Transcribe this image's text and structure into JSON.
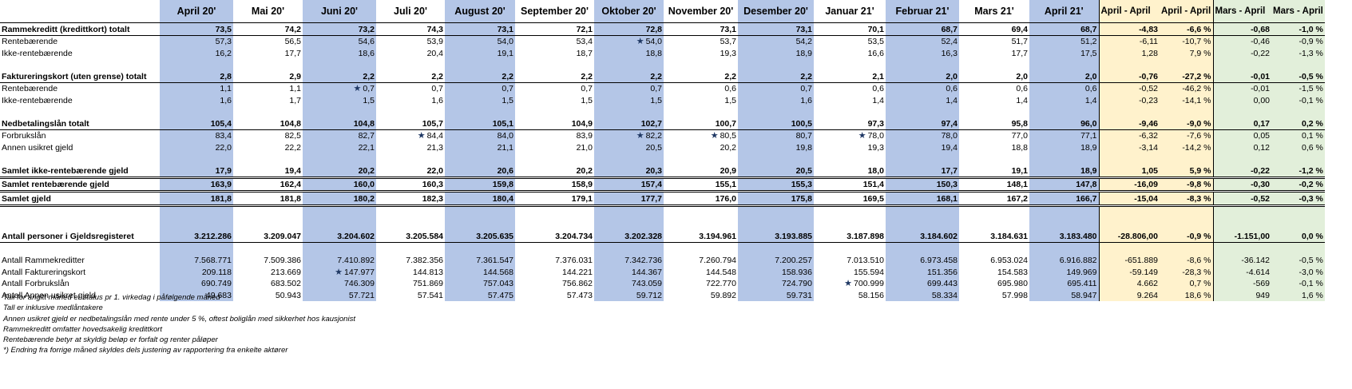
{
  "columns": [
    "April 20'",
    "Mai 20'",
    "Juni 20'",
    "Juli 20'",
    "August 20'",
    "September 20'",
    "Oktober 20'",
    "November 20'",
    "Desember 20'",
    "Januar 21'",
    "Februar 21'",
    "Mars 21'",
    "April 21'",
    "April - April",
    "April - April",
    "Mars - April",
    "Mars - April"
  ],
  "colors": {
    "blue": "#b4c6e7",
    "yellow": "#fff2cc",
    "green": "#e2efda",
    "star": "#1f3864"
  },
  "rows": [
    {
      "label": "Rammekreditt (kredittkort) totalt",
      "style": "bold",
      "values": [
        "73,5",
        "74,2",
        "73,2",
        "74,3",
        "73,1",
        "72,1",
        "72,8",
        "73,1",
        "73,1",
        "70,1",
        "68,7",
        "69,4",
        "68,7",
        "-4,83",
        "-6,6 %",
        "-0,68",
        "-1,0 %"
      ]
    },
    {
      "label": "Rentebærende",
      "values": [
        "57,3",
        "56,5",
        "54,6",
        "53,9",
        "54,0",
        "53,4",
        "54,0",
        "53,7",
        "54,2",
        "53,5",
        "52,4",
        "51,7",
        "51,2",
        "-6,11",
        "-10,7 %",
        "-0,46",
        "-0,9 %"
      ],
      "stars": [
        6
      ]
    },
    {
      "label": "Ikke-rentebærende",
      "values": [
        "16,2",
        "17,7",
        "18,6",
        "20,4",
        "19,1",
        "18,7",
        "18,8",
        "19,3",
        "18,9",
        "16,6",
        "16,3",
        "17,7",
        "17,5",
        "1,28",
        "7,9 %",
        "-0,22",
        "-1,3 %"
      ]
    },
    {
      "spacer": true
    },
    {
      "label": "Faktureringskort (uten grense) totalt",
      "style": "bold",
      "values": [
        "2,8",
        "2,9",
        "2,2",
        "2,2",
        "2,2",
        "2,2",
        "2,2",
        "2,2",
        "2,2",
        "2,1",
        "2,0",
        "2,0",
        "2,0",
        "-0,76",
        "-27,2 %",
        "-0,01",
        "-0,5 %"
      ]
    },
    {
      "label": "Rentebærende",
      "values": [
        "1,1",
        "1,1",
        "0,7",
        "0,7",
        "0,7",
        "0,7",
        "0,7",
        "0,6",
        "0,7",
        "0,6",
        "0,6",
        "0,6",
        "0,6",
        "-0,52",
        "-46,2 %",
        "-0,01",
        "-1,5 %"
      ],
      "stars": [
        2
      ]
    },
    {
      "label": "Ikke-rentebærende",
      "values": [
        "1,6",
        "1,7",
        "1,5",
        "1,6",
        "1,5",
        "1,5",
        "1,5",
        "1,5",
        "1,6",
        "1,4",
        "1,4",
        "1,4",
        "1,4",
        "-0,23",
        "-14,1 %",
        "0,00",
        "-0,1 %"
      ]
    },
    {
      "spacer": true
    },
    {
      "label": "Nedbetalingslån totalt",
      "style": "bold",
      "values": [
        "105,4",
        "104,8",
        "104,8",
        "105,7",
        "105,1",
        "104,9",
        "102,7",
        "100,7",
        "100,5",
        "97,3",
        "97,4",
        "95,8",
        "96,0",
        "-9,46",
        "-9,0 %",
        "0,17",
        "0,2 %"
      ]
    },
    {
      "label": "Forbrukslån",
      "values": [
        "83,4",
        "82,5",
        "82,7",
        "84,4",
        "84,0",
        "83,9",
        "82,2",
        "80,5",
        "80,7",
        "78,0",
        "78,0",
        "77,0",
        "77,1",
        "-6,32",
        "-7,6 %",
        "0,05",
        "0,1 %"
      ],
      "stars": [
        3,
        6,
        7,
        9
      ]
    },
    {
      "label": "Annen usikret gjeld",
      "values": [
        "22,0",
        "22,2",
        "22,1",
        "21,3",
        "21,1",
        "21,0",
        "20,5",
        "20,2",
        "19,8",
        "19,3",
        "19,4",
        "18,8",
        "18,9",
        "-3,14",
        "-14,2 %",
        "0,12",
        "0,6 %"
      ]
    },
    {
      "spacer": true
    },
    {
      "label": "Samlet ikke-rentebærende gjeld",
      "style": "bold",
      "values": [
        "17,9",
        "19,4",
        "20,2",
        "22,0",
        "20,6",
        "20,2",
        "20,3",
        "20,9",
        "20,5",
        "18,0",
        "17,7",
        "19,1",
        "18,9",
        "1,05",
        "5,9 %",
        "-0,22",
        "-1,2 %"
      ]
    },
    {
      "label": "Samlet rentebærende gjeld",
      "style": "bold",
      "values": [
        "163,9",
        "162,4",
        "160,0",
        "160,3",
        "159,8",
        "158,9",
        "157,4",
        "155,1",
        "155,3",
        "151,4",
        "150,3",
        "148,1",
        "147,8",
        "-16,09",
        "-9,8 %",
        "-0,30",
        "-0,2 %"
      ]
    },
    {
      "label": "Samlet gjeld",
      "style": "bold",
      "values": [
        "181,8",
        "181,8",
        "180,2",
        "182,3",
        "180,4",
        "179,1",
        "177,7",
        "176,0",
        "175,8",
        "169,5",
        "168,1",
        "167,2",
        "166,7",
        "-15,04",
        "-8,3 %",
        "-0,52",
        "-0,3 %"
      ]
    },
    {
      "bigspacer": true
    },
    {
      "label": "Antall personer i Gjeldsregisteret",
      "style": "bold",
      "values": [
        "3.212.286",
        "3.209.047",
        "3.204.602",
        "3.205.584",
        "3.205.635",
        "3.204.734",
        "3.202.328",
        "3.194.961",
        "3.193.885",
        "3.187.898",
        "3.184.602",
        "3.184.631",
        "3.183.480",
        "-28.806,00",
        "-0,9 %",
        "-1.151,00",
        "0,0 %"
      ]
    },
    {
      "spacer": true
    },
    {
      "label": "Antall Rammekreditter",
      "values": [
        "7.568.771",
        "7.509.386",
        "7.410.892",
        "7.382.356",
        "7.361.547",
        "7.376.031",
        "7.342.736",
        "7.260.794",
        "7.200.257",
        "7.013.510",
        "6.973.458",
        "6.953.024",
        "6.916.882",
        "-651.889",
        "-8,6 %",
        "-36.142",
        "-0,5 %"
      ]
    },
    {
      "label": "Antall Faktureringskort",
      "values": [
        "209.118",
        "213.669",
        "147.977",
        "144.813",
        "144.568",
        "144.221",
        "144.367",
        "144.548",
        "158.936",
        "155.594",
        "151.356",
        "154.583",
        "149.969",
        "-59.149",
        "-28,3 %",
        "-4.614",
        "-3,0 %"
      ],
      "stars": [
        2
      ]
    },
    {
      "label": "Antall Forbrukslån",
      "values": [
        "690.749",
        "683.502",
        "746.309",
        "751.869",
        "757.043",
        "756.862",
        "743.059",
        "722.770",
        "724.790",
        "700.999",
        "699.443",
        "695.980",
        "695.411",
        "4.662",
        "0,7 %",
        "-569",
        "-0,1 %"
      ],
      "stars": [
        9
      ]
    },
    {
      "label": "Antall Annen usikret gjeld",
      "values": [
        "49.683",
        "50.943",
        "57.721",
        "57.541",
        "57.475",
        "57.473",
        "59.712",
        "59.892",
        "59.731",
        "58.156",
        "58.334",
        "57.998",
        "58.947",
        "9.264",
        "18,6 %",
        "949",
        "1,6 %"
      ]
    }
  ],
  "notes": [
    "Tall for angitt måned er status pr 1. virkedag i påfølgende måned",
    "Tall er inklusive medlåntakere",
    "Annen usikret gjeld er nedbetalingslån med rente under 5 %, oftest boliglån med sikkerhet hos kausjonist",
    "Rammekreditt omfatter hovedsakelig kredittkort",
    "Rentebærende betyr at skyldig beløp er forfalt og renter påløper",
    "*) Endring fra forrige måned skyldes dels justering av rapportering fra enkelte aktører"
  ]
}
